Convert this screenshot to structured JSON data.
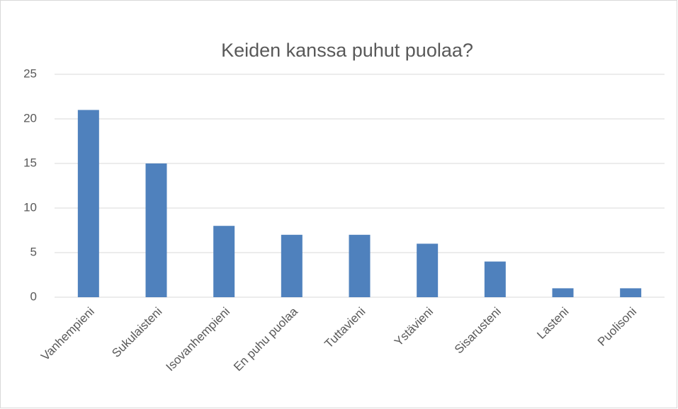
{
  "chart_data": {
    "type": "bar",
    "title": "Keiden kanssa puhut puolaa?",
    "categories": [
      "Vanhempieni",
      "Sukulaisteni",
      "Isovanhempieni",
      "En puhu puolaa",
      "Tuttavieni",
      "Ystävieni",
      "Sisarusteni",
      "Lasteni",
      "Puolisoni"
    ],
    "values": [
      21,
      15,
      8,
      7,
      7,
      6,
      4,
      1,
      1
    ],
    "color": "#4f81bd",
    "ylim": [
      0,
      25
    ],
    "yticks": [
      0,
      5,
      10,
      15,
      20,
      25
    ],
    "grid": true
  }
}
